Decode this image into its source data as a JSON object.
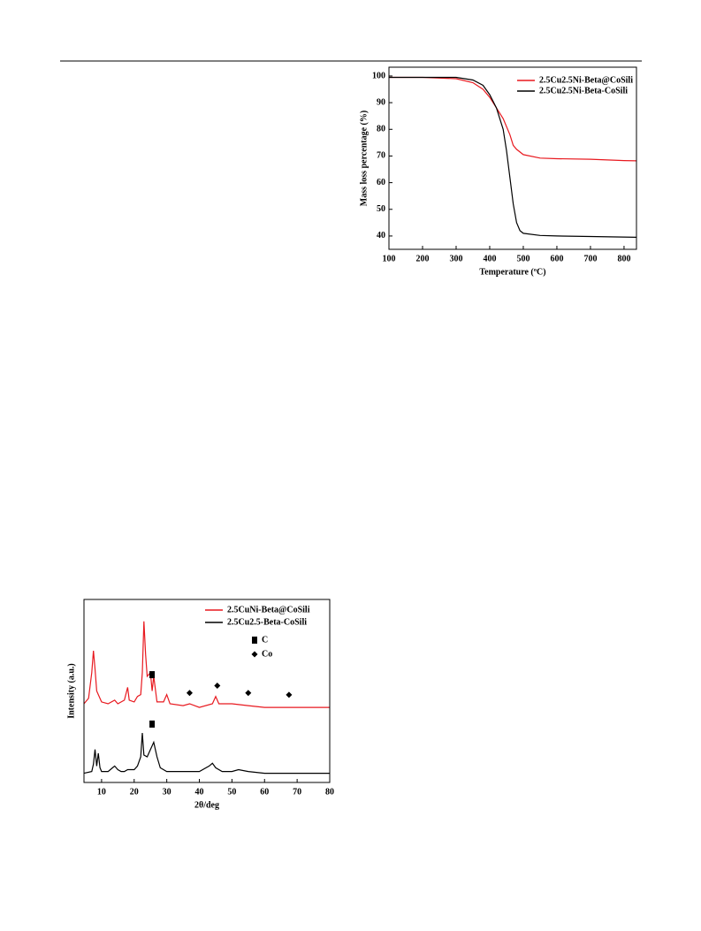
{
  "chart_data": [
    {
      "type": "line",
      "x_label": "Temperature (ºC)",
      "y_label": "Mass loss percentage (%)",
      "xlim": [
        100,
        837
      ],
      "ylim": [
        35,
        103.3
      ],
      "xticks": [
        100,
        200,
        300,
        400,
        500,
        600,
        700,
        800
      ],
      "yticks": [
        40,
        50,
        60,
        70,
        80,
        90,
        100
      ],
      "legend": "upper right",
      "series": [
        {
          "name": "2.5Cu2.5Ni-Beta@CoSili",
          "color": "#e8191f",
          "x": [
            100,
            200,
            300,
            350,
            380,
            400,
            420,
            440,
            460,
            470,
            480,
            500,
            550,
            600,
            700,
            800,
            837
          ],
          "values": [
            99.5,
            99.5,
            99,
            97.5,
            95,
            92,
            88,
            84,
            78,
            74,
            72.5,
            70.5,
            69.2,
            69,
            68.8,
            68.3,
            68.2
          ]
        },
        {
          "name": "2.5Cu2.5Ni-Beta-CoSili",
          "color": "#000000",
          "x": [
            100,
            300,
            350,
            380,
            400,
            420,
            440,
            450,
            460,
            470,
            480,
            490,
            500,
            550,
            600,
            700,
            837
          ],
          "values": [
            99.5,
            99.5,
            98.5,
            96.5,
            93,
            88,
            80,
            72,
            62,
            52,
            45,
            42,
            41,
            40.2,
            40,
            39.8,
            39.5
          ]
        }
      ]
    },
    {
      "type": "line",
      "x_label": "2θ/deg",
      "y_label": "Intensity (a.u.)",
      "xlim": [
        4.6,
        80
      ],
      "ylim": [
        0,
        100
      ],
      "xticks": [
        10,
        20,
        30,
        40,
        50,
        60,
        70,
        80
      ],
      "legend": "upper right",
      "series": [
        {
          "name": "2.5CuNi-Beta@CoSili",
          "color": "#e8191f",
          "x": [
            4.6,
            6,
            7,
            7.5,
            8,
            8.5,
            9,
            10,
            12,
            14,
            15,
            17,
            18,
            18.5,
            20,
            21,
            22,
            22.5,
            23,
            23.5,
            24,
            25,
            25.5,
            26,
            27,
            29,
            30,
            31,
            35,
            37,
            40,
            44,
            45,
            46,
            50,
            55,
            60,
            65,
            70,
            80
          ],
          "values": [
            43,
            46,
            60,
            72,
            62,
            50,
            48,
            44,
            43,
            45,
            43,
            45,
            52,
            45,
            44,
            47,
            48,
            60,
            88,
            70,
            58,
            60,
            50,
            58,
            44,
            44,
            48,
            43,
            42,
            43,
            41,
            43,
            47,
            43,
            43,
            42,
            41,
            41,
            41,
            41
          ]
        },
        {
          "name": "2.5Cu2.5-Beta-CoSili",
          "color": "#000000",
          "x": [
            4.6,
            7,
            7.5,
            8,
            8.5,
            9,
            9.5,
            10,
            12,
            14,
            15,
            16,
            17,
            18,
            20,
            21,
            22,
            22.5,
            23,
            24,
            25,
            26,
            27,
            28,
            30,
            35,
            40,
            43,
            44,
            45,
            47,
            50,
            52,
            55,
            60,
            70,
            80
          ],
          "values": [
            5,
            6,
            10,
            18,
            9,
            16,
            8,
            6,
            6,
            9,
            7,
            6,
            6,
            7,
            7,
            9,
            14,
            27,
            15,
            14,
            18,
            22,
            14,
            8,
            6,
            6,
            6,
            9,
            10.5,
            8,
            6,
            6,
            7,
            6,
            5,
            5,
            5
          ]
        }
      ],
      "markers": [
        {
          "name": "C",
          "shape": "square",
          "color": "#000000",
          "x": [
            25.5,
            25.5
          ],
          "values": [
            56,
            29
          ]
        },
        {
          "name": "Co",
          "shape": "diamond",
          "color": "#000000",
          "x": [
            37,
            45.5,
            55,
            67.5
          ],
          "values": [
            46,
            50,
            46,
            45
          ]
        }
      ]
    }
  ]
}
